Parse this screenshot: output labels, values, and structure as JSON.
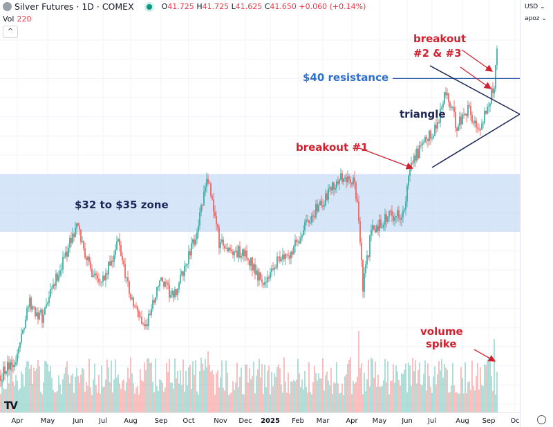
{
  "header": {
    "symbol": "Silver Futures · 1D · COMEX",
    "o_label": "O",
    "o": "41.725",
    "h_label": "H",
    "h": "41.725",
    "l_label": "L",
    "l": "41.625",
    "c_label": "C",
    "c": "41.650",
    "change": "+0.060 (+0.14%)",
    "vol_label": "Vol",
    "vol": "220",
    "collapse": "^"
  },
  "axis_controls": {
    "currency": "USD ⌄",
    "scale": "apoz ⌄"
  },
  "annotations": {
    "breakout23_line1": "breakout",
    "breakout23_line2": "#2 & #3",
    "resistance": "$40 resistance",
    "triangle": "triangle",
    "breakout1": "breakout #1",
    "zone": "$32 to $35 zone",
    "volume1": "volume",
    "volume2": "spike"
  },
  "colors": {
    "up": "#26a69a",
    "down": "#ef5350",
    "zone": "#c9dcf7",
    "annotation_red": "#d3202e",
    "annotation_blue": "#2f6fcc",
    "annotation_navy": "#1c2757"
  },
  "chart_data": {
    "type": "candlestick",
    "title": "Silver Futures · 1D · COMEX",
    "ylim": [
      22.6,
      42.6
    ],
    "yticks": [
      "42.000",
      "41.000",
      "40.000",
      "39.000",
      "38.000",
      "37.000",
      "36.000",
      "35.000",
      "34.000",
      "33.000",
      "32.000",
      "31.000",
      "30.000",
      "29.000",
      "28.000",
      "27.000",
      "26.000",
      "25.000",
      "24.000",
      "23.000"
    ],
    "xticks": [
      {
        "label": "Apr",
        "day": 12
      },
      {
        "label": "May",
        "day": 34
      },
      {
        "label": "Jun",
        "day": 56
      },
      {
        "label": "Jul",
        "day": 74
      },
      {
        "label": "Aug",
        "day": 94
      },
      {
        "label": "Sep",
        "day": 116
      },
      {
        "label": "Oct",
        "day": 136
      },
      {
        "label": "Nov",
        "day": 159
      },
      {
        "label": "Dec",
        "day": 177
      },
      {
        "label": "2025",
        "day": 195
      },
      {
        "label": "Feb",
        "day": 215
      },
      {
        "label": "Mar",
        "day": 233
      },
      {
        "label": "Apr",
        "day": 254
      },
      {
        "label": "May",
        "day": 274
      },
      {
        "label": "Jun",
        "day": 294
      },
      {
        "label": "Jul",
        "day": 312
      },
      {
        "label": "Aug",
        "day": 334
      },
      {
        "label": "Sep",
        "day": 353
      },
      {
        "label": "Oc",
        "day": 372
      }
    ],
    "total_days": 360,
    "price_path": [
      [
        0,
        24.5
      ],
      [
        12,
        25.5
      ],
      [
        20,
        28.3
      ],
      [
        30,
        27.5
      ],
      [
        45,
        30.5
      ],
      [
        55,
        32.3
      ],
      [
        65,
        30.0
      ],
      [
        75,
        29.5
      ],
      [
        85,
        31.5
      ],
      [
        95,
        28.3
      ],
      [
        105,
        27.0
      ],
      [
        115,
        29.5
      ],
      [
        125,
        28.5
      ],
      [
        140,
        31.5
      ],
      [
        150,
        34.8
      ],
      [
        158,
        31.5
      ],
      [
        168,
        31.0
      ],
      [
        178,
        30.8
      ],
      [
        190,
        29.3
      ],
      [
        200,
        30.5
      ],
      [
        210,
        31.0
      ],
      [
        222,
        32.5
      ],
      [
        232,
        33.5
      ],
      [
        245,
        34.8
      ],
      [
        255,
        34.5
      ],
      [
        258,
        33.8
      ],
      [
        262,
        29.0
      ],
      [
        268,
        32.0
      ],
      [
        280,
        32.8
      ],
      [
        292,
        33.0
      ],
      [
        297,
        35.8
      ],
      [
        304,
        36.3
      ],
      [
        315,
        37.5
      ],
      [
        322,
        39.3
      ],
      [
        330,
        37.5
      ],
      [
        338,
        38.5
      ],
      [
        345,
        37.2
      ],
      [
        352,
        38.5
      ],
      [
        357,
        39.6
      ],
      [
        359,
        41.7
      ]
    ],
    "zone": [
      32,
      35
    ],
    "resistance": 40,
    "triangle": {
      "upper": [
        [
          310,
          41.1
        ],
        [
          375,
          38.1
        ]
      ],
      "lower": [
        [
          312,
          35.5
        ],
        [
          375,
          38.1
        ]
      ]
    },
    "volume_spikes": [
      [
        259,
        1.0
      ],
      [
        357,
        0.9
      ],
      [
        150,
        0.75
      ],
      [
        5,
        0.7
      ]
    ]
  }
}
